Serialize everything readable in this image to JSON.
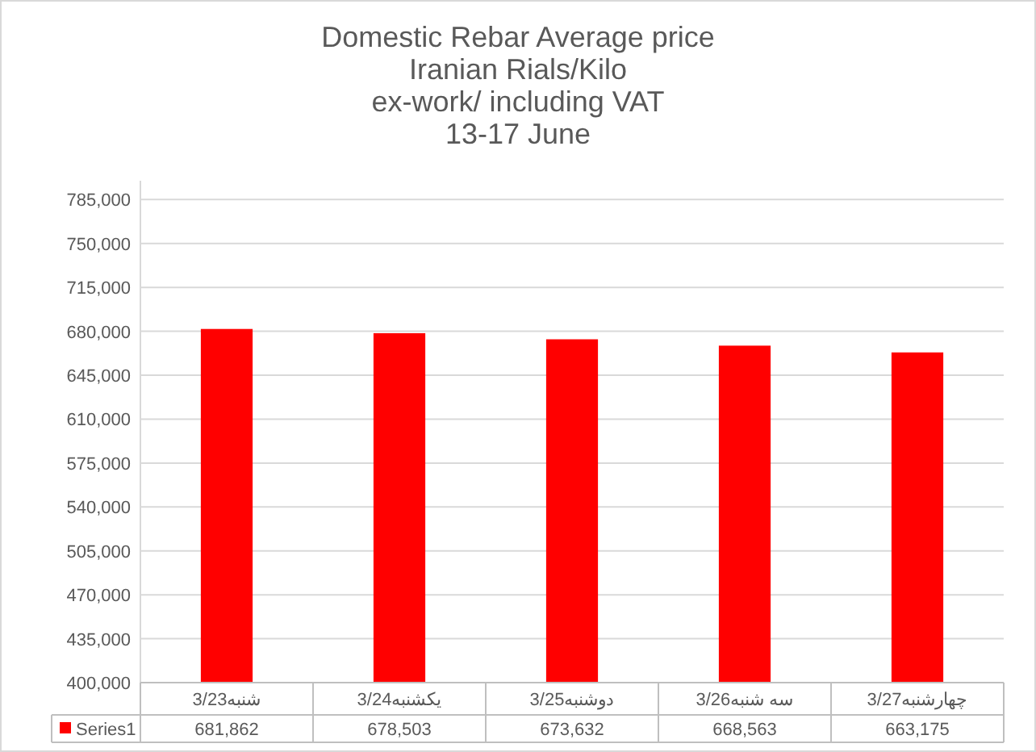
{
  "chart_data": {
    "type": "bar",
    "title": "Domestic Rebar Average price\nIranian Rials/Kilo\nex-work/ including VAT\n13-17 June",
    "categories": [
      "3/23شنبه",
      "3/24یکشنبه",
      "3/25دوشنبه",
      "3/26سه شنبه",
      "3/27چهارشنبه"
    ],
    "series": [
      {
        "name": "Series1",
        "color": "#ff0000",
        "values": [
          681862,
          678503,
          673632,
          668563,
          663175
        ],
        "value_labels": [
          "681,862",
          "678,503",
          "673,632",
          "668,563",
          "663,175"
        ]
      }
    ],
    "ylim": [
      400000,
      800000
    ],
    "yticks": [
      {
        "value": 400000,
        "label": "400,000"
      },
      {
        "value": 435000,
        "label": "435,000"
      },
      {
        "value": 470000,
        "label": "470,000"
      },
      {
        "value": 505000,
        "label": "505,000"
      },
      {
        "value": 540000,
        "label": "540,000"
      },
      {
        "value": 575000,
        "label": "575,000"
      },
      {
        "value": 610000,
        "label": "610,000"
      },
      {
        "value": 645000,
        "label": "645,000"
      },
      {
        "value": 680000,
        "label": "680,000"
      },
      {
        "value": 715000,
        "label": "715,000"
      },
      {
        "value": 750000,
        "label": "750,000"
      },
      {
        "value": 785000,
        "label": "785,000"
      }
    ],
    "grid": "y",
    "legend": "bottom"
  }
}
